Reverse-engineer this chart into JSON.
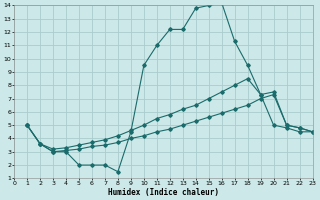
{
  "xlabel": "Humidex (Indice chaleur)",
  "background_color": "#cce8e8",
  "grid_color": "#aacccc",
  "line_color": "#1a6b6b",
  "xlim": [
    0,
    23
  ],
  "ylim": [
    1,
    14
  ],
  "xticks": [
    0,
    1,
    2,
    3,
    4,
    5,
    6,
    7,
    8,
    9,
    10,
    11,
    12,
    13,
    14,
    15,
    16,
    17,
    18,
    19,
    20,
    21,
    22,
    23
  ],
  "yticks": [
    1,
    2,
    3,
    4,
    5,
    6,
    7,
    8,
    9,
    10,
    11,
    12,
    13,
    14
  ],
  "curve1_x": [
    1,
    2,
    3,
    4,
    5,
    6,
    7,
    8,
    9,
    10,
    11,
    12,
    13,
    14,
    15,
    16,
    17,
    18,
    19,
    20,
    21,
    22,
    23
  ],
  "curve1_y": [
    5.0,
    3.6,
    3.0,
    3.0,
    2.0,
    2.0,
    2.0,
    1.5,
    4.5,
    9.5,
    11.0,
    12.2,
    12.2,
    13.8,
    14.0,
    14.2,
    11.3,
    9.5,
    7.3,
    5.0,
    4.8,
    4.5,
    4.5
  ],
  "curve2_x": [
    1,
    2,
    3,
    4,
    5,
    6,
    7,
    8,
    9,
    10,
    11,
    12,
    13,
    14,
    15,
    16,
    17,
    18,
    19,
    20,
    21,
    22,
    23
  ],
  "curve2_y": [
    5.0,
    3.6,
    3.2,
    3.3,
    3.5,
    3.7,
    3.9,
    4.2,
    4.6,
    5.0,
    5.5,
    5.8,
    6.2,
    6.5,
    7.0,
    7.5,
    8.0,
    8.5,
    7.3,
    7.5,
    5.0,
    4.8,
    4.5
  ],
  "curve3_x": [
    1,
    2,
    3,
    4,
    5,
    6,
    7,
    8,
    9,
    10,
    11,
    12,
    13,
    14,
    15,
    16,
    17,
    18,
    19,
    20,
    21,
    22,
    23
  ],
  "curve3_y": [
    5.0,
    3.6,
    3.0,
    3.1,
    3.2,
    3.4,
    3.5,
    3.7,
    4.0,
    4.2,
    4.5,
    4.7,
    5.0,
    5.3,
    5.6,
    5.9,
    6.2,
    6.5,
    7.0,
    7.3,
    5.0,
    4.8,
    4.5
  ]
}
